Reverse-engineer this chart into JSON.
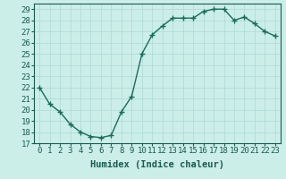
{
  "x": [
    0,
    1,
    2,
    3,
    4,
    5,
    6,
    7,
    8,
    9,
    10,
    11,
    12,
    13,
    14,
    15,
    16,
    17,
    18,
    19,
    20,
    21,
    22,
    23
  ],
  "y": [
    22,
    20.5,
    19.8,
    18.7,
    18.0,
    17.6,
    17.5,
    17.7,
    19.8,
    21.2,
    25.0,
    26.7,
    27.5,
    28.2,
    28.2,
    28.2,
    28.8,
    29.0,
    29.0,
    28.0,
    28.3,
    27.7,
    27.0,
    26.6
  ],
  "line_color": "#1a6b5a",
  "marker": "+",
  "marker_color": "#1a6b5a",
  "bg_color": "#cceee8",
  "grid_color": "#b0ddd8",
  "xlabel": "Humidex (Indice chaleur)",
  "ylim": [
    17,
    29.5
  ],
  "xlim": [
    -0.5,
    23.5
  ],
  "yticks": [
    17,
    18,
    19,
    20,
    21,
    22,
    23,
    24,
    25,
    26,
    27,
    28,
    29
  ],
  "xticks": [
    0,
    1,
    2,
    3,
    4,
    5,
    6,
    7,
    8,
    9,
    10,
    11,
    12,
    13,
    14,
    15,
    16,
    17,
    18,
    19,
    20,
    21,
    22,
    23
  ],
  "font_color": "#1a5a50",
  "label_fontsize": 7.5,
  "tick_fontsize": 6.5,
  "line_width": 1.0,
  "marker_size": 4
}
